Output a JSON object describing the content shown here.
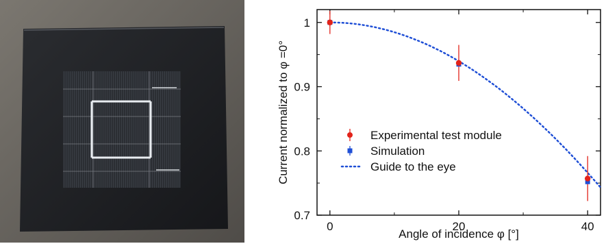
{
  "photo": {
    "description_icon": "solar-test-module-photo"
  },
  "chart_data": {
    "type": "scatter",
    "xlabel": "Angle of incidence φ [°]",
    "ylabel": "Current normalized to φ =0°",
    "xlim": [
      -2,
      42
    ],
    "ylim": [
      0.7,
      1.02
    ],
    "x_ticks": [
      0,
      20,
      40
    ],
    "y_ticks": [
      0.7,
      0.8,
      0.9,
      1
    ],
    "x_tick_labels": [
      "0",
      "20",
      "40"
    ],
    "y_tick_labels": [
      "0.7",
      "0.8",
      "0.9",
      "1"
    ],
    "grid": false,
    "legend_position": "bottom-left",
    "series": [
      {
        "name": "Experimental test module",
        "kind": "points-with-errorbars",
        "color": "#e2231a",
        "marker": "circle",
        "points": [
          {
            "x": 0,
            "y": 1.0,
            "err": 0.018
          },
          {
            "x": 20,
            "y": 0.937,
            "err": 0.028
          },
          {
            "x": 40,
            "y": 0.757,
            "err": 0.035
          }
        ]
      },
      {
        "name": "Simulation",
        "kind": "points",
        "color": "#1f4fd6",
        "marker": "square",
        "points": [
          {
            "x": 0,
            "y": 1.0
          },
          {
            "x": 20,
            "y": 0.935
          },
          {
            "x": 40,
            "y": 0.752
          }
        ]
      },
      {
        "name": "Guide to the eye",
        "kind": "dotted-line",
        "color": "#1f4fd6",
        "function": "cos",
        "x_range": [
          0,
          42
        ]
      }
    ]
  }
}
